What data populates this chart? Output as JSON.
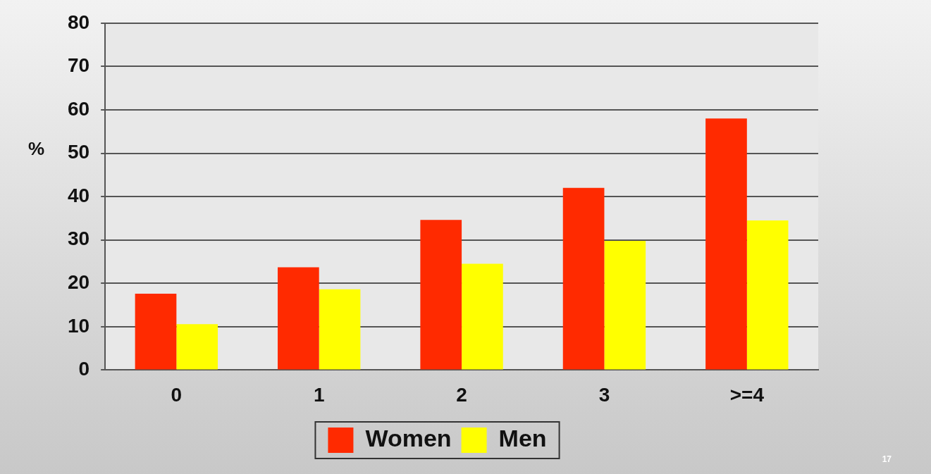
{
  "chart_data": {
    "type": "bar",
    "ylabel": "%",
    "categories": [
      "0",
      "1",
      "2",
      "3",
      ">=4"
    ],
    "series": [
      {
        "name": "Women",
        "color": "#ff2a00",
        "values": [
          17.6,
          23.7,
          34.6,
          42,
          58
        ]
      },
      {
        "name": "Men",
        "color": "#ffff00",
        "values": [
          10.6,
          18.6,
          24.5,
          29.8,
          34.5
        ]
      }
    ],
    "ylim": [
      0,
      80
    ],
    "yticks": [
      0,
      10,
      20,
      30,
      40,
      50,
      60,
      70,
      80
    ],
    "grid": "y",
    "legend": "bottom",
    "annotations": [
      "17"
    ]
  }
}
